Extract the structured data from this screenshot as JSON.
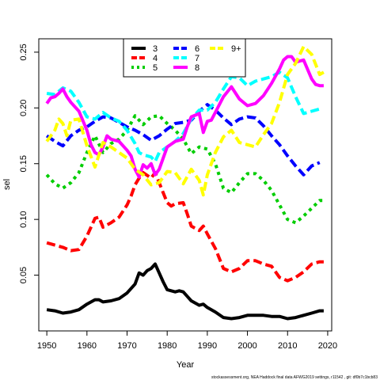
{
  "chart_data": {
    "type": "line",
    "xlabel": "Year",
    "ylabel": "sel",
    "xlim": [
      1948,
      2021
    ],
    "ylim": [
      0.0,
      0.262
    ],
    "x_ticks": [
      1950,
      1960,
      1970,
      1980,
      1990,
      2000,
      2010,
      2020
    ],
    "y_ticks": [
      0.05,
      0.1,
      0.15,
      0.2,
      0.25
    ],
    "grid": false,
    "legend_position": "top-center",
    "footer": "stockassessment.org,  NEA Haddock  final  data  AFWG2019  settings,  r11542 ,  git:  df0b7c1bcb83",
    "series": [
      {
        "name": "3",
        "color": "#000000",
        "dash": "solid",
        "x": [
          1950,
          1952,
          1954,
          1956,
          1958,
          1960,
          1962,
          1963,
          1964,
          1966,
          1968,
          1970,
          1972,
          1973,
          1974,
          1975,
          1976,
          1977,
          1978,
          1979,
          1980,
          1982,
          1983,
          1984,
          1985,
          1986,
          1988,
          1989,
          1990,
          1992,
          1994,
          1996,
          1998,
          2000,
          2002,
          2004,
          2006,
          2008,
          2010,
          2012,
          2014,
          2016,
          2018,
          2019
        ],
        "y": [
          0.019,
          0.018,
          0.016,
          0.017,
          0.019,
          0.024,
          0.028,
          0.028,
          0.026,
          0.027,
          0.029,
          0.034,
          0.042,
          0.052,
          0.05,
          0.054,
          0.056,
          0.06,
          0.052,
          0.044,
          0.037,
          0.035,
          0.036,
          0.035,
          0.031,
          0.027,
          0.023,
          0.024,
          0.021,
          0.017,
          0.012,
          0.011,
          0.012,
          0.014,
          0.014,
          0.014,
          0.013,
          0.013,
          0.011,
          0.012,
          0.014,
          0.016,
          0.018,
          0.018
        ]
      },
      {
        "name": "4",
        "color": "#ff0000",
        "dash": "dash",
        "x": [
          1950,
          1952,
          1954,
          1956,
          1958,
          1960,
          1962,
          1963,
          1964,
          1966,
          1968,
          1970,
          1971,
          1972,
          1973,
          1974,
          1976,
          1977,
          1978,
          1979,
          1980,
          1981,
          1982,
          1984,
          1985,
          1986,
          1988,
          1989,
          1990,
          1992,
          1994,
          1996,
          1998,
          2000,
          2002,
          2004,
          2006,
          2008,
          2010,
          2012,
          2014,
          2016,
          2018,
          2019
        ],
        "y": [
          0.079,
          0.077,
          0.075,
          0.072,
          0.073,
          0.085,
          0.101,
          0.102,
          0.093,
          0.097,
          0.102,
          0.113,
          0.121,
          0.131,
          0.137,
          0.142,
          0.137,
          0.142,
          0.133,
          0.124,
          0.115,
          0.112,
          0.114,
          0.115,
          0.105,
          0.094,
          0.09,
          0.094,
          0.087,
          0.074,
          0.056,
          0.053,
          0.056,
          0.063,
          0.063,
          0.06,
          0.058,
          0.048,
          0.045,
          0.048,
          0.053,
          0.06,
          0.062,
          0.062
        ]
      },
      {
        "name": "5",
        "color": "#00cd00",
        "dash": "dot",
        "x": [
          1950,
          1952,
          1954,
          1956,
          1958,
          1960,
          1962,
          1964,
          1966,
          1968,
          1970,
          1972,
          1974,
          1976,
          1978,
          1980,
          1982,
          1984,
          1986,
          1988,
          1990,
          1992,
          1994,
          1996,
          1998,
          2000,
          2002,
          2004,
          2006,
          2008,
          2010,
          2012,
          2014,
          2016,
          2018,
          2019
        ],
        "y": [
          0.14,
          0.132,
          0.128,
          0.133,
          0.142,
          0.16,
          0.175,
          0.16,
          0.168,
          0.172,
          0.18,
          0.193,
          0.185,
          0.192,
          0.193,
          0.186,
          0.18,
          0.172,
          0.159,
          0.165,
          0.163,
          0.15,
          0.128,
          0.124,
          0.133,
          0.141,
          0.141,
          0.135,
          0.126,
          0.113,
          0.1,
          0.097,
          0.103,
          0.11,
          0.117,
          0.117
        ]
      },
      {
        "name": "6",
        "color": "#0000ff",
        "dash": "dash",
        "x": [
          1950,
          1952,
          1954,
          1956,
          1958,
          1960,
          1962,
          1964,
          1966,
          1968,
          1970,
          1972,
          1974,
          1976,
          1978,
          1980,
          1982,
          1984,
          1986,
          1988,
          1990,
          1992,
          1994,
          1996,
          1998,
          2000,
          2002,
          2004,
          2006,
          2008,
          2010,
          2012,
          2014,
          2016,
          2018
        ],
        "y": [
          0.175,
          0.17,
          0.166,
          0.175,
          0.18,
          0.183,
          0.188,
          0.192,
          0.191,
          0.187,
          0.183,
          0.18,
          0.176,
          0.171,
          0.175,
          0.181,
          0.186,
          0.187,
          0.189,
          0.197,
          0.203,
          0.198,
          0.191,
          0.185,
          0.19,
          0.192,
          0.191,
          0.184,
          0.175,
          0.167,
          0.157,
          0.148,
          0.14,
          0.148,
          0.151
        ]
      },
      {
        "name": "7",
        "color": "#00ffff",
        "dash": "dash",
        "x": [
          1950,
          1952,
          1954,
          1956,
          1958,
          1960,
          1962,
          1964,
          1966,
          1968,
          1970,
          1972,
          1973,
          1974,
          1976,
          1977,
          1978,
          1980,
          1982,
          1984,
          1986,
          1988,
          1990,
          1992,
          1994,
          1996,
          1998,
          2000,
          2002,
          2004,
          2006,
          2008,
          2010,
          2012,
          2014,
          2016,
          2018
        ],
        "y": [
          0.213,
          0.212,
          0.218,
          0.215,
          0.205,
          0.192,
          0.19,
          0.196,
          0.191,
          0.188,
          0.18,
          0.168,
          0.16,
          0.158,
          0.156,
          0.152,
          0.16,
          0.165,
          0.17,
          0.177,
          0.19,
          0.198,
          0.198,
          0.205,
          0.217,
          0.228,
          0.227,
          0.22,
          0.224,
          0.226,
          0.228,
          0.232,
          0.227,
          0.21,
          0.195,
          0.197,
          0.199
        ]
      },
      {
        "name": "8",
        "color": "#ff00ff",
        "dash": "solid",
        "x": [
          1950,
          1951,
          1952,
          1953,
          1954,
          1955,
          1956,
          1958,
          1960,
          1961,
          1962,
          1963,
          1964,
          1965,
          1966,
          1968,
          1970,
          1971,
          1972,
          1973,
          1974,
          1975,
          1976,
          1977,
          1978,
          1980,
          1982,
          1984,
          1985,
          1986,
          1988,
          1989,
          1990,
          1991,
          1992,
          1994,
          1996,
          1998,
          2000,
          2002,
          2004,
          2006,
          2008,
          2009,
          2010,
          2011,
          2012,
          2014,
          2016,
          2017,
          2018,
          2019
        ],
        "y": [
          0.204,
          0.209,
          0.21,
          0.213,
          0.217,
          0.21,
          0.205,
          0.197,
          0.18,
          0.167,
          0.16,
          0.158,
          0.165,
          0.175,
          0.172,
          0.17,
          0.162,
          0.157,
          0.145,
          0.138,
          0.149,
          0.146,
          0.15,
          0.14,
          0.145,
          0.165,
          0.17,
          0.172,
          0.183,
          0.192,
          0.195,
          0.178,
          0.188,
          0.189,
          0.196,
          0.21,
          0.219,
          0.208,
          0.202,
          0.204,
          0.211,
          0.222,
          0.235,
          0.243,
          0.246,
          0.246,
          0.241,
          0.243,
          0.226,
          0.221,
          0.22,
          0.22
        ]
      },
      {
        "name": "9+",
        "color": "#ffff00",
        "dash": "dash",
        "x": [
          1950,
          1952,
          1953,
          1954,
          1955,
          1956,
          1958,
          1960,
          1962,
          1964,
          1966,
          1968,
          1970,
          1972,
          1974,
          1976,
          1977,
          1978,
          1980,
          1982,
          1984,
          1986,
          1988,
          1989,
          1990,
          1992,
          1994,
          1996,
          1998,
          2000,
          2002,
          2004,
          2006,
          2008,
          2010,
          2012,
          2014,
          2016,
          2018,
          2019
        ],
        "y": [
          0.17,
          0.18,
          0.19,
          0.186,
          0.175,
          0.189,
          0.19,
          0.166,
          0.147,
          0.169,
          0.165,
          0.16,
          0.155,
          0.145,
          0.14,
          0.131,
          0.132,
          0.133,
          0.143,
          0.142,
          0.132,
          0.145,
          0.135,
          0.122,
          0.14,
          0.16,
          0.174,
          0.18,
          0.169,
          0.167,
          0.165,
          0.176,
          0.186,
          0.205,
          0.23,
          0.24,
          0.255,
          0.248,
          0.23,
          0.232
        ]
      }
    ]
  }
}
